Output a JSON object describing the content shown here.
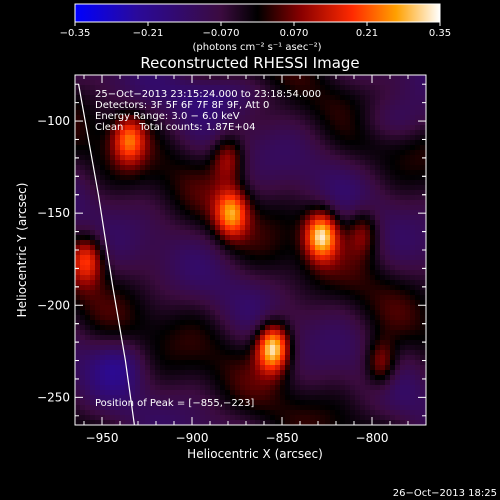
{
  "chart_data": {
    "type": "heatmap",
    "title": "Reconstructed RHESSI Image",
    "xlabel": "Heliocentric X (arcsec)",
    "ylabel": "Heliocentric Y (arcsec)",
    "xlim": [
      -965,
      -770
    ],
    "ylim": [
      -265,
      -75
    ],
    "x_ticks": [
      -950,
      -900,
      -850,
      -800
    ],
    "x_tick_labels": [
      "−950",
      "−900",
      "−850",
      "−800"
    ],
    "y_ticks": [
      -100,
      -150,
      -200,
      -250
    ],
    "y_tick_labels": [
      "−100",
      "−150",
      "−200",
      "−250"
    ],
    "colorbar": {
      "range": [
        -0.35,
        0.35
      ],
      "ticks": [
        -0.35,
        -0.21,
        -0.07,
        0.07,
        0.21,
        0.35
      ],
      "tick_labels": [
        "−0.35",
        "−0.21",
        "−0.070",
        "0.070",
        "0.21",
        "0.35"
      ],
      "units_label": "(photons cm⁻² s⁻¹ asec⁻²)"
    },
    "annotations": [
      "25−Oct−2013 23:15:24.000 to 23:18:54.000",
      "Detectors: 3F 5F 6F 7F 8F 9F, Att 0",
      "Energy Range: 3.0 − 6.0 keV",
      "Clean     Total counts: 1.87E+04"
    ],
    "peak_label": "Position of Peak = [−855,−223]",
    "peaks": [
      {
        "x": -855,
        "y": -223,
        "value": 0.35
      },
      {
        "x": -828,
        "y": -162,
        "value": 0.3
      },
      {
        "x": -878,
        "y": -150,
        "value": 0.22
      },
      {
        "x": -935,
        "y": -110,
        "value": 0.18
      },
      {
        "x": -958,
        "y": -175,
        "value": 0.17
      },
      {
        "x": -880,
        "y": -120,
        "value": 0.12
      },
      {
        "x": -795,
        "y": -232,
        "value": 0.14
      },
      {
        "x": -805,
        "y": -160,
        "value": 0.1
      }
    ],
    "limb_curve": [
      [
        -963,
        -80
      ],
      [
        -952,
        -140
      ],
      [
        -944,
        -190
      ],
      [
        -937,
        -230
      ],
      [
        -932,
        -265
      ]
    ]
  },
  "footer": {
    "timestamp": "26−Oct−2013 18:25"
  },
  "colors": {
    "axes": "#ffffff",
    "background": "#000000"
  }
}
